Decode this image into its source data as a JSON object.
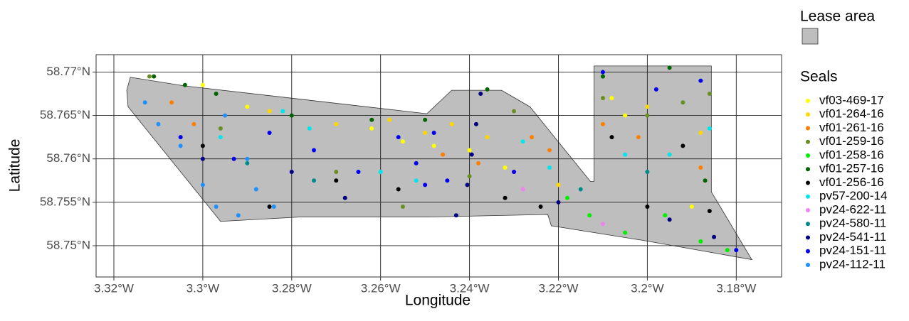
{
  "chart_data": {
    "type": "scatter",
    "x_label": "Longitude",
    "y_label": "Latitude",
    "xlim": [
      -3.324,
      -3.1698
    ],
    "ylim": [
      58.7464,
      58.772
    ],
    "xticks": [
      {
        "value": -3.32,
        "label": "3.32°W"
      },
      {
        "value": -3.3,
        "label": "3.3°W"
      },
      {
        "value": -3.28,
        "label": "3.28°W"
      },
      {
        "value": -3.26,
        "label": "3.26°W"
      },
      {
        "value": -3.24,
        "label": "3.24°W"
      },
      {
        "value": -3.22,
        "label": "3.22°W"
      },
      {
        "value": -3.2,
        "label": "3.2°W"
      },
      {
        "value": -3.18,
        "label": "3.18°W"
      }
    ],
    "yticks": [
      {
        "value": 58.75,
        "label": "58.75°N"
      },
      {
        "value": 58.755,
        "label": "58.755°N"
      },
      {
        "value": 58.76,
        "label": "58.76°N"
      },
      {
        "value": 58.765,
        "label": "58.765°N"
      },
      {
        "value": 58.77,
        "label": "58.77°N"
      }
    ],
    "grid": true,
    "lease_area": {
      "name": "Lease area",
      "color": "#bebebe",
      "lon": [
        -3.3163,
        -3.304,
        -3.2496,
        -3.244,
        -3.2328,
        -3.2264,
        -3.2128,
        -3.212,
        -3.212,
        -3.1856,
        -3.1856,
        -3.1765,
        -3.2008,
        -3.2216,
        -3.2224,
        -3.2496,
        -3.2784,
        -3.296,
        -3.3168,
        -3.3171
      ],
      "lat": [
        58.7694,
        58.7684,
        58.7652,
        58.7679,
        58.7679,
        58.766,
        58.7574,
        58.7574,
        58.7707,
        58.7707,
        58.7562,
        58.7484,
        58.7506,
        58.7523,
        58.7536,
        58.7533,
        58.7533,
        58.7528,
        58.766,
        58.7679
      ]
    },
    "legend_title": "Seals",
    "series": [
      {
        "name": "vf03-469-17",
        "color": "#ffff00",
        "x": [
          -3.3,
          -3.29,
          -3.262,
          -3.255,
          -3.248,
          -3.24,
          -3.232,
          -3.208,
          -3.205,
          -3.19
        ],
        "y": [
          58.7685,
          58.766,
          58.7635,
          58.762,
          58.7615,
          58.761,
          58.759,
          58.767,
          58.765,
          58.7545
        ]
      },
      {
        "name": "vf01-264-16",
        "color": "#ffd700",
        "x": [
          -3.285,
          -3.27,
          -3.258,
          -3.25,
          -3.244,
          -3.236,
          -3.228,
          -3.22,
          -3.2,
          -3.188
        ],
        "y": [
          58.7655,
          58.764,
          58.7645,
          58.763,
          58.764,
          58.7625,
          58.762,
          58.757,
          58.766,
          58.763
        ]
      },
      {
        "name": "vf01-261-16",
        "color": "#ff7f00",
        "x": [
          -3.307,
          -3.302,
          -3.246,
          -3.238,
          -3.23,
          -3.226,
          -3.222,
          -3.21,
          -3.202,
          -3.195,
          -3.188
        ],
        "y": [
          58.7665,
          58.764,
          58.7605,
          58.7595,
          58.7585,
          58.7625,
          58.761,
          58.764,
          58.7625,
          58.7605,
          58.759
        ]
      },
      {
        "name": "vf01-259-16",
        "color": "#6b8e23",
        "x": [
          -3.312,
          -3.296,
          -3.27,
          -3.255,
          -3.24,
          -3.23,
          -3.21,
          -3.2,
          -3.192,
          -3.186
        ],
        "y": [
          58.7695,
          58.7635,
          58.7585,
          58.7545,
          58.758,
          58.7655,
          58.767,
          58.765,
          58.7665,
          58.7675
        ]
      },
      {
        "name": "vf01-258-16",
        "color": "#00ee00",
        "x": [
          -3.218,
          -3.213,
          -3.205,
          -3.196,
          -3.188,
          -3.182
        ],
        "y": [
          58.7555,
          58.7535,
          58.7515,
          58.7535,
          58.7505,
          58.7495
        ]
      },
      {
        "name": "vf01-257-16",
        "color": "#006400",
        "x": [
          -3.311,
          -3.304,
          -3.297,
          -3.28,
          -3.262,
          -3.25,
          -3.236,
          -3.21,
          -3.195,
          -3.187
        ],
        "y": [
          58.7695,
          58.7685,
          58.7675,
          58.765,
          58.7645,
          58.7645,
          58.768,
          58.7695,
          58.7705,
          58.7575
        ]
      },
      {
        "name": "vf01-256-16",
        "color": "#000000",
        "x": [
          -3.3,
          -3.285,
          -3.27,
          -3.256,
          -3.232,
          -3.224,
          -3.208,
          -3.2,
          -3.192,
          -3.186
        ],
        "y": [
          58.7615,
          58.7545,
          58.7575,
          58.7565,
          58.7555,
          58.7545,
          58.7625,
          58.7545,
          58.7615,
          58.754
        ]
      },
      {
        "name": "pv57-200-14",
        "color": "#00e5ee",
        "x": [
          -3.296,
          -3.282,
          -3.276,
          -3.26,
          -3.252,
          -3.228,
          -3.222,
          -3.205,
          -3.195,
          -3.186
        ],
        "y": [
          58.7625,
          58.7655,
          58.7635,
          58.7585,
          58.7575,
          58.762,
          58.759,
          58.7605,
          58.7605,
          58.7635
        ]
      },
      {
        "name": "pv24-622-11",
        "color": "#ee82ee",
        "x": [
          -3.228,
          -3.21
        ],
        "y": [
          58.7565,
          58.7525
        ]
      },
      {
        "name": "pv24-580-11",
        "color": "#008b8b",
        "x": [
          -3.29,
          -3.275,
          -3.215,
          -3.2
        ],
        "y": [
          58.7595,
          58.7575,
          58.7565,
          58.7585
        ]
      },
      {
        "name": "pv24-541-11",
        "color": "#000080",
        "x": [
          -3.2375,
          -3.2385,
          -3.2395,
          -3.2405,
          -3.243,
          -3.268,
          -3.28,
          -3.3,
          -3.22,
          -3.195,
          -3.185
        ],
        "y": [
          58.7675,
          58.764,
          58.7605,
          58.757,
          58.7535,
          58.7555,
          58.7585,
          58.76,
          58.755,
          58.753,
          58.751
        ]
      },
      {
        "name": "pv24-151-11",
        "color": "#0000ee",
        "x": [
          -3.305,
          -3.293,
          -3.285,
          -3.275,
          -3.265,
          -3.25,
          -3.248,
          -3.252,
          -3.256,
          -3.245,
          -3.23,
          -3.21,
          -3.198,
          -3.188,
          -3.18
        ],
        "y": [
          58.7625,
          58.76,
          58.763,
          58.761,
          58.7585,
          58.757,
          58.763,
          58.7595,
          58.7625,
          58.7575,
          58.7585,
          58.77,
          58.768,
          58.769,
          58.7495
        ]
      },
      {
        "name": "pv24-112-11",
        "color": "#1e90ff",
        "x": [
          -3.313,
          -3.31,
          -3.305,
          -3.3,
          -3.297,
          -3.292,
          -3.288,
          -3.284,
          -3.29,
          -3.295
        ],
        "y": [
          58.7665,
          58.764,
          58.7615,
          58.757,
          58.7545,
          58.7535,
          58.7565,
          58.7545,
          58.76,
          58.765
        ]
      }
    ]
  }
}
